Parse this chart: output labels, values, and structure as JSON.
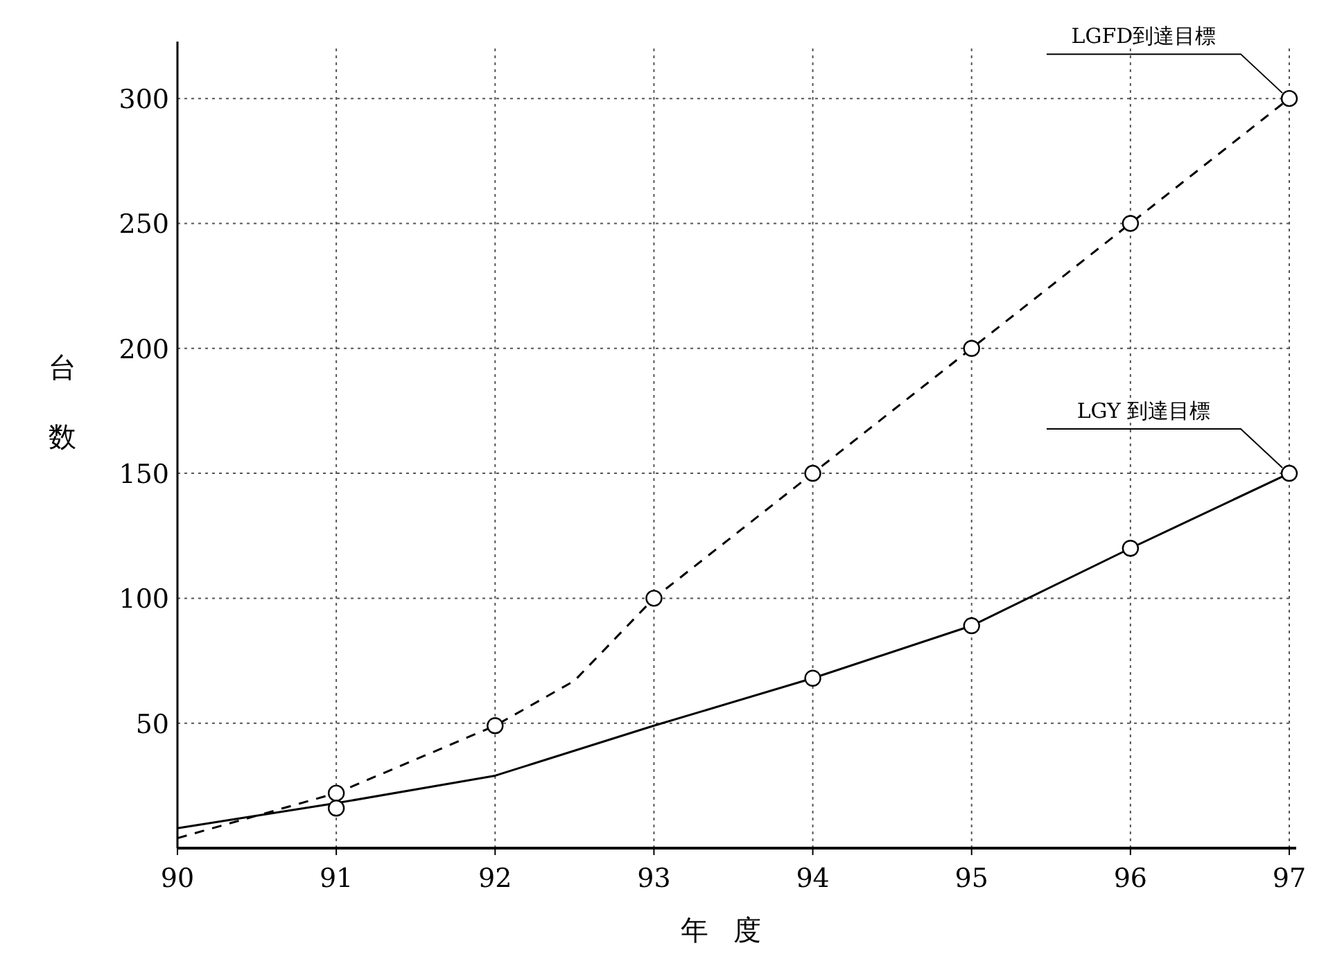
{
  "chart_data": {
    "type": "line",
    "xlabel": "年度",
    "ylabel": "台数",
    "xlim": [
      90,
      97
    ],
    "ylim": [
      0,
      320
    ],
    "xticks": [
      90,
      91,
      92,
      93,
      94,
      95,
      96,
      97
    ],
    "yticks": [
      50,
      100,
      150,
      200,
      250,
      300
    ],
    "grid": true,
    "series": [
      {
        "name": "LGFD到達目標",
        "color": "#000000",
        "line_style": "dashed",
        "marker": "none",
        "x": [
          90,
          91,
          92,
          92.5,
          93,
          94,
          95,
          96,
          97
        ],
        "values": [
          4,
          22,
          49,
          67,
          100,
          150,
          200,
          250,
          300
        ]
      },
      {
        "color": "#000000",
        "type": "scatter",
        "marker": "circle",
        "x": [
          91,
          92,
          93,
          94,
          95,
          96,
          97
        ],
        "values": [
          22,
          49,
          100,
          150,
          200,
          250,
          300
        ]
      },
      {
        "name": "LGY 到達目標",
        "color": "#000000",
        "line_style": "solid",
        "marker": "none",
        "x": [
          90,
          91,
          92,
          93,
          94,
          95,
          96,
          97
        ],
        "values": [
          8,
          18,
          29,
          49,
          68,
          89,
          120,
          150
        ]
      },
      {
        "color": "#000000",
        "type": "scatter",
        "marker": "circle",
        "x": [
          91,
          94,
          95,
          96,
          97
        ],
        "values": [
          16,
          68,
          89,
          120,
          150
        ]
      }
    ]
  }
}
